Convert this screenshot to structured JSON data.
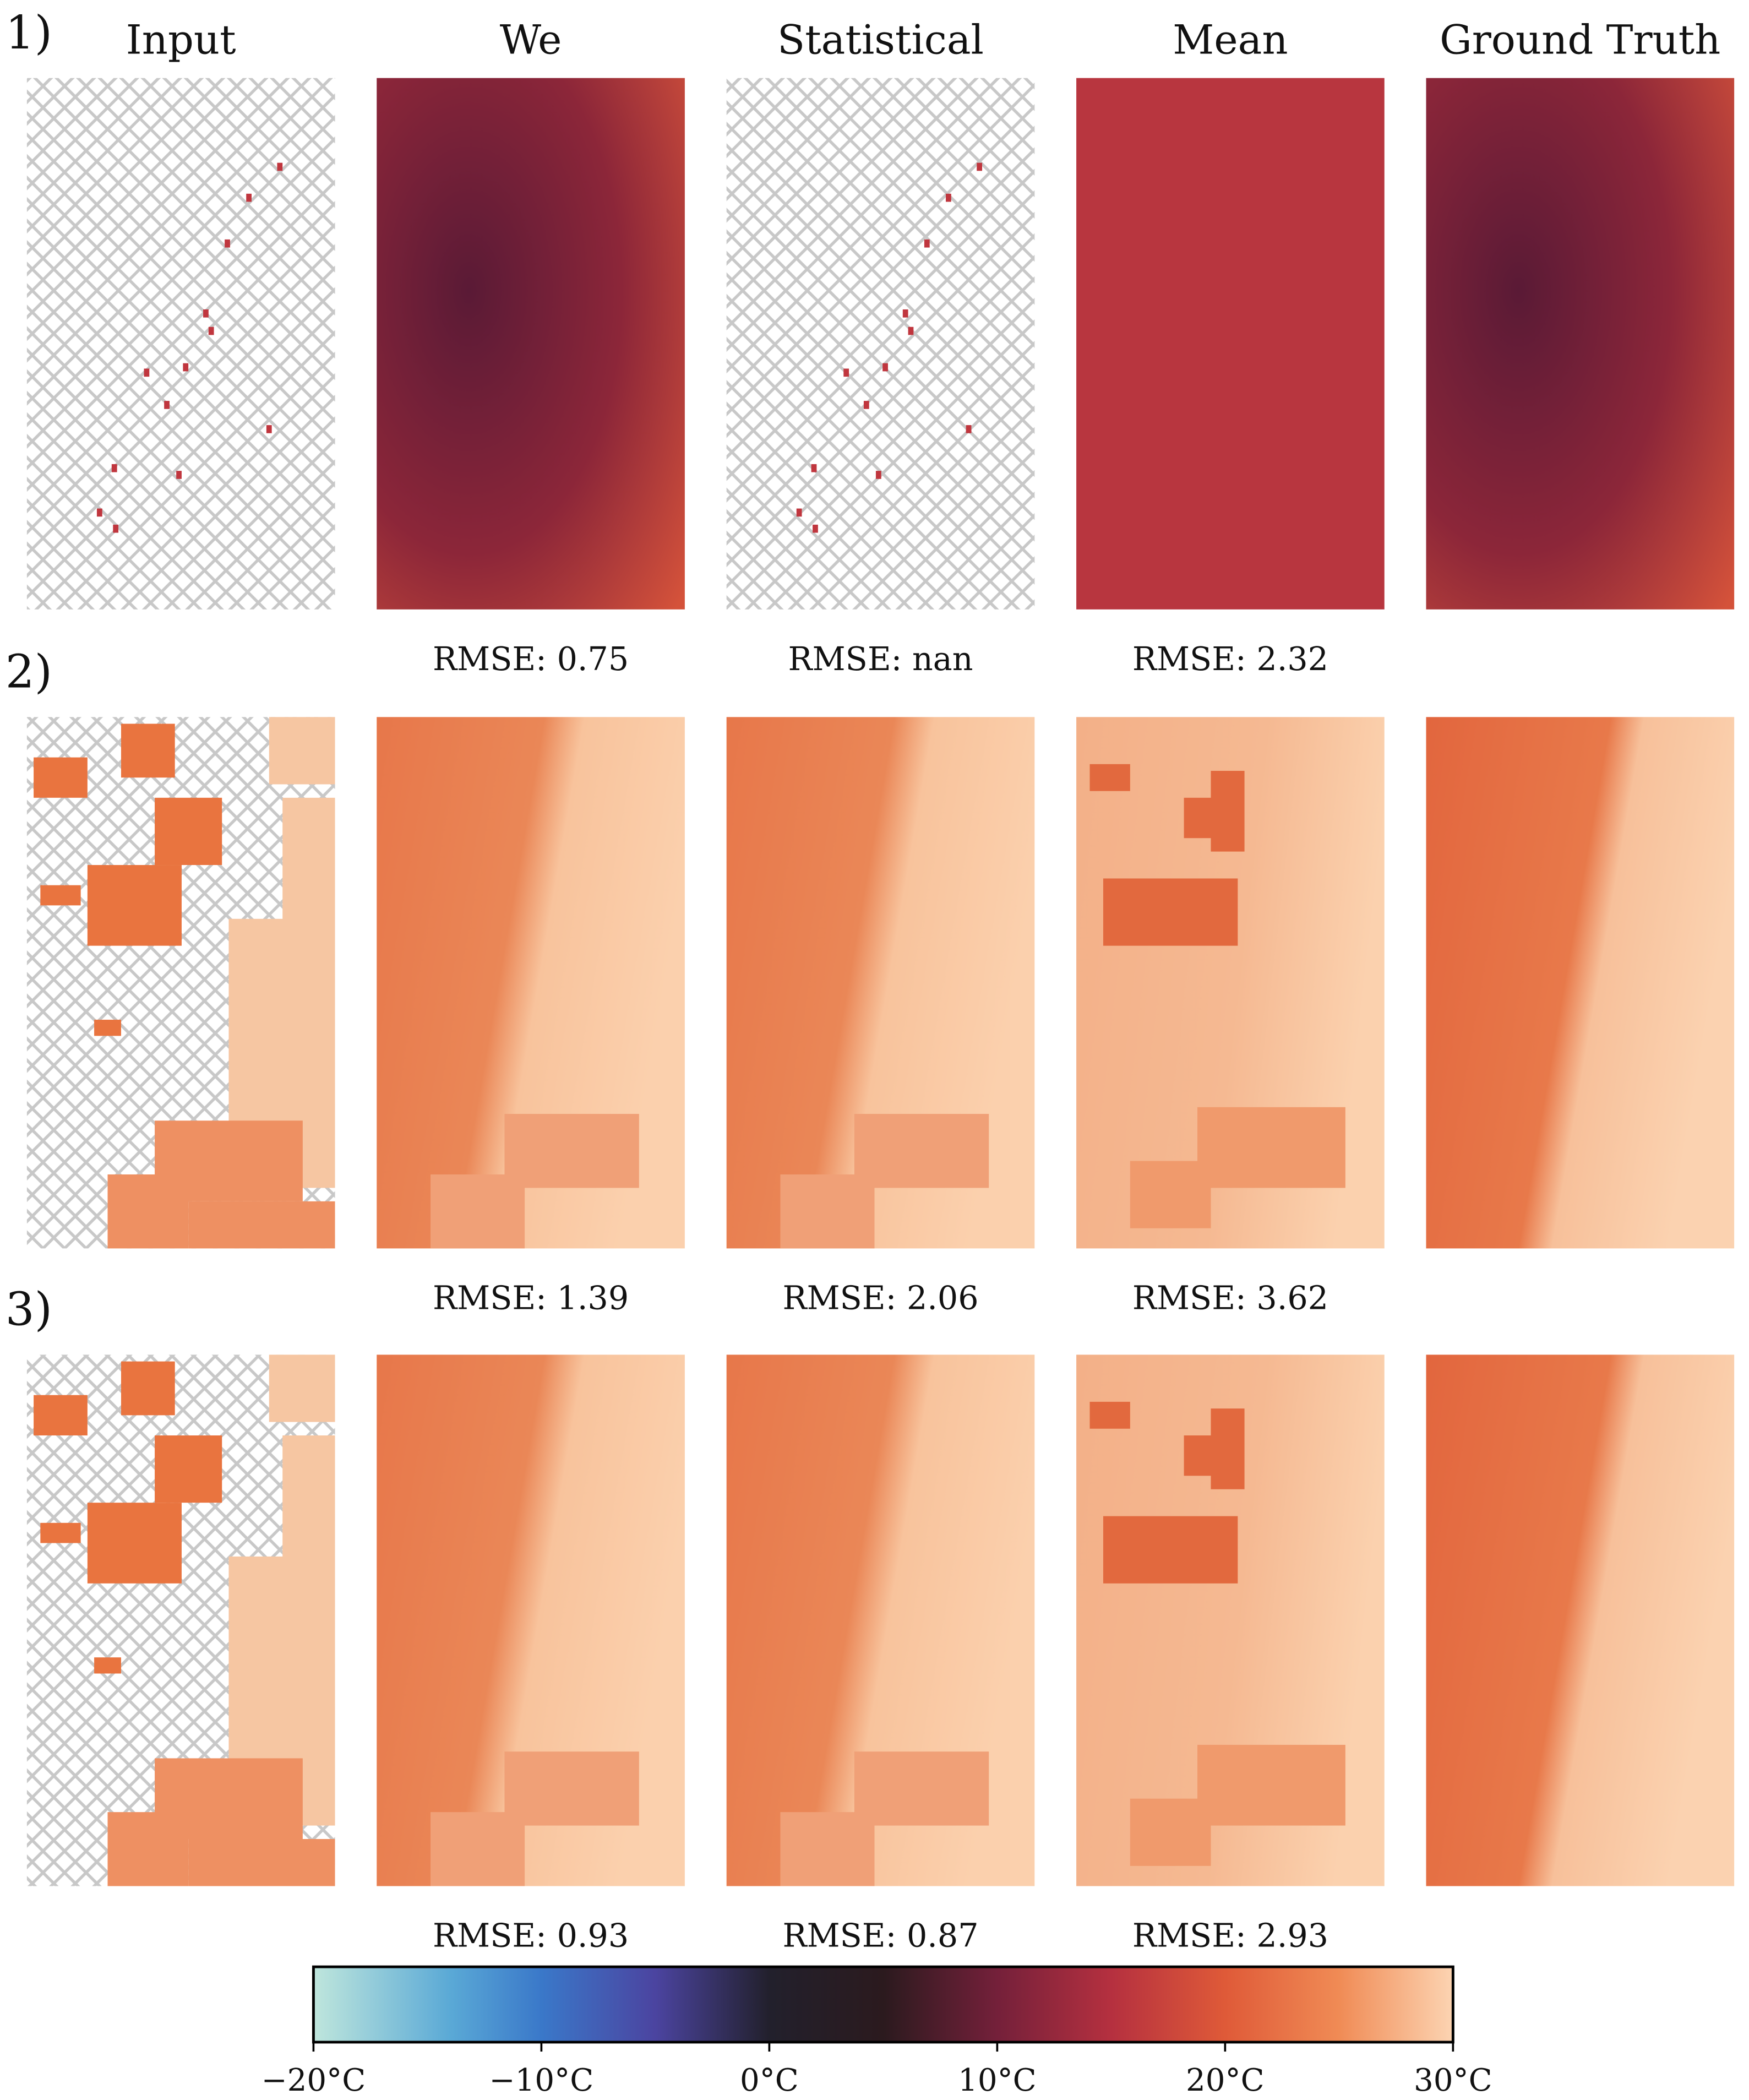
{
  "chart_data": {
    "type": "heatmap-grid",
    "columns": [
      "Input",
      "We",
      "Statistical",
      "Mean",
      "Ground Truth"
    ],
    "rows": [
      {
        "label": "1)",
        "rmse": [
          "RMSE: 0.75",
          "RMSE: nan",
          "RMSE: 2.32"
        ]
      },
      {
        "label": "2)",
        "rmse": [
          "RMSE: 1.39",
          "RMSE: 2.06",
          "RMSE: 3.62"
        ]
      },
      {
        "label": "3)",
        "rmse": [
          "RMSE: 0.93",
          "RMSE: 0.87",
          "RMSE: 2.93"
        ]
      }
    ],
    "colorbar": {
      "lim": [
        -20,
        30
      ],
      "ticks": [
        {
          "value": -20,
          "label": "−20°C"
        },
        {
          "value": -10,
          "label": "−10°C"
        },
        {
          "value": 0,
          "label": "0°C"
        },
        {
          "value": 10,
          "label": "10°C"
        },
        {
          "value": 20,
          "label": "20°C"
        },
        {
          "value": 30,
          "label": "30°C"
        }
      ]
    }
  }
}
